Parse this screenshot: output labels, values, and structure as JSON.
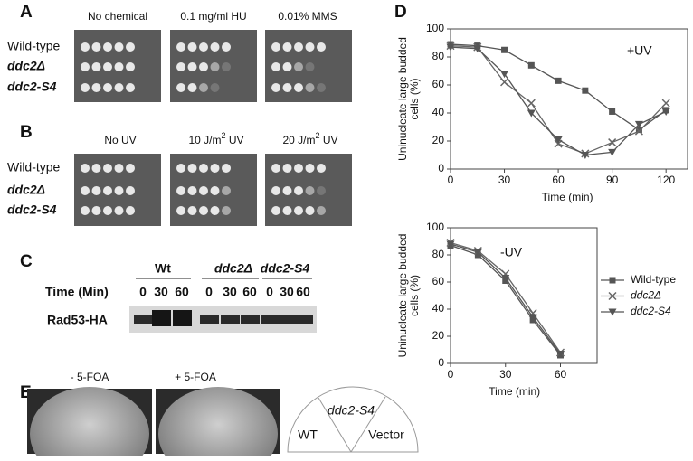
{
  "panels": {
    "A": {
      "label": "A",
      "columns": [
        "No chemical",
        "0.1 mg/ml HU",
        "0.01% MMS"
      ],
      "rows": [
        "Wild-type",
        "ddc2Δ",
        "ddc2-S4"
      ]
    },
    "B": {
      "label": "B",
      "columns": [
        {
          "pre": "No UV"
        },
        {
          "pre": "10 J/m",
          "sup": "2",
          "post": " UV"
        },
        {
          "pre": "20 J/m",
          "sup": "2",
          "post": " UV"
        }
      ],
      "rows": [
        "Wild-type",
        "ddc2Δ",
        "ddc2-S4"
      ]
    },
    "C": {
      "label": "C",
      "groups": [
        "Wt",
        "ddc2Δ",
        "ddc2-S4"
      ],
      "time_label": "Time (Min)",
      "times": [
        [
          "0",
          "30",
          "60"
        ],
        [
          "0",
          "30",
          "60"
        ],
        [
          "0",
          "30",
          "60"
        ]
      ],
      "protein": "Rad53-HA"
    },
    "D": {
      "label": "D"
    },
    "E": {
      "label": "E",
      "plates": [
        "- 5-FOA",
        "+ 5-FOA"
      ],
      "sectors": [
        "ddc2-S4",
        "WT",
        "Vector"
      ]
    }
  },
  "chart_data": [
    {
      "type": "line",
      "annotation": "+UV",
      "xlabel": "Time (min)",
      "ylabel": [
        "Uninucleate large budded",
        "cells (%)"
      ],
      "x": [
        0,
        15,
        30,
        45,
        60,
        75,
        90,
        105,
        120
      ],
      "xlim": [
        0,
        132
      ],
      "xticks": [
        0,
        30,
        60,
        90,
        120
      ],
      "ylim": [
        0,
        100
      ],
      "yticks": [
        0,
        20,
        40,
        60,
        80,
        100
      ],
      "series": [
        {
          "color": "#555555",
          "marker": "square",
          "values": [
            89,
            88,
            85,
            74,
            63,
            56,
            41,
            28,
            42
          ]
        },
        {
          "color": "#666666",
          "marker": "x",
          "values": [
            88,
            87,
            62,
            47,
            18,
            11,
            19,
            27,
            47
          ]
        },
        {
          "color": "#555555",
          "marker": "triangle-down",
          "values": [
            87,
            86,
            68,
            40,
            21,
            10,
            12,
            32,
            41
          ]
        }
      ]
    },
    {
      "type": "line",
      "annotation": "-UV",
      "xlabel": "Time (min)",
      "ylabel": [
        "Uninucleate large budded",
        "cells (%)"
      ],
      "x": [
        0,
        15,
        30,
        45,
        60
      ],
      "xlim": [
        0,
        80
      ],
      "xticks": [
        0,
        30,
        60
      ],
      "ylim": [
        0,
        100
      ],
      "yticks": [
        0,
        20,
        40,
        60,
        80,
        100
      ],
      "series": [
        {
          "name": "Wild-type",
          "color": "#555555",
          "marker": "square",
          "values": [
            87,
            80,
            61,
            32,
            6
          ]
        },
        {
          "name": "ddc2Δ",
          "color": "#666666",
          "marker": "x",
          "values": [
            89,
            83,
            66,
            37,
            8
          ]
        },
        {
          "name": "ddc2-S4",
          "color": "#555555",
          "marker": "triangle-down",
          "values": [
            88,
            82,
            63,
            34,
            7
          ]
        }
      ]
    }
  ]
}
